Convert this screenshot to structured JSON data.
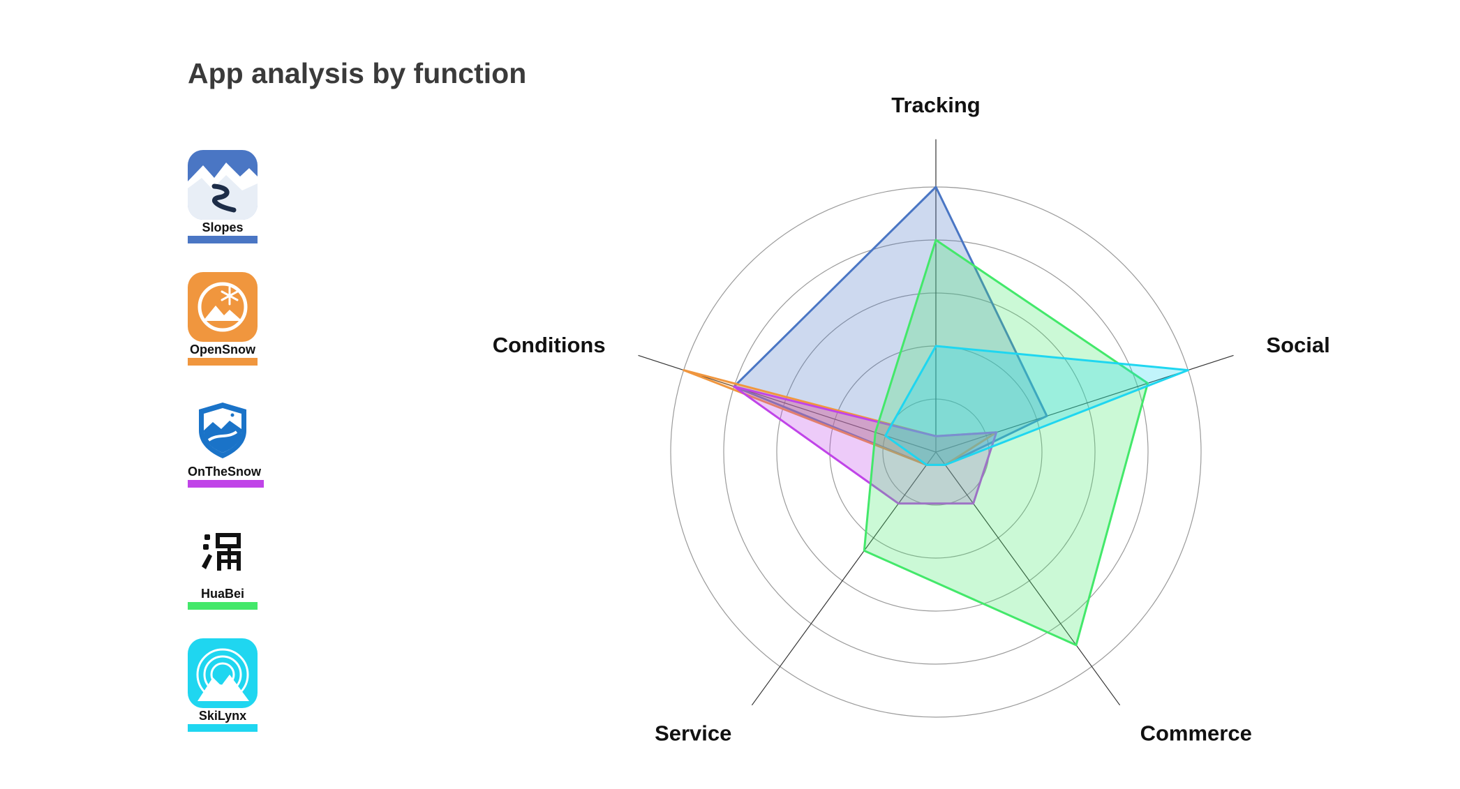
{
  "title": "App analysis by function",
  "legend": [
    {
      "name": "Slopes",
      "color": "#4a76c4",
      "icon": "slopes-app-icon"
    },
    {
      "name": "OpenSnow",
      "color": "#f0963e",
      "icon": "opensnow-app-icon"
    },
    {
      "name": "OnTheSnow",
      "color": "#c044e8",
      "icon": "onthesnow-app-icon"
    },
    {
      "name": "HuaBei",
      "color": "#43e86a",
      "icon": "huabei-app-icon"
    },
    {
      "name": "SkiLynx",
      "color": "#1fd6f0",
      "icon": "skilynx-app-icon"
    }
  ],
  "chart_data": {
    "type": "radar",
    "title": "App analysis by function",
    "axes": [
      "Tracking",
      "Social",
      "Commerce",
      "Service",
      "Conditions"
    ],
    "range": [
      0,
      5
    ],
    "grid": true,
    "rings": 5,
    "legend_position": "left",
    "series": [
      {
        "name": "Slopes",
        "color": "#4a76c4",
        "values": [
          5,
          2.2,
          0.3,
          0.3,
          4
        ]
      },
      {
        "name": "OpenSnow",
        "color": "#f0963e",
        "values": [
          0.3,
          1.2,
          0.3,
          0.3,
          5
        ]
      },
      {
        "name": "OnTheSnow",
        "color": "#c044e8",
        "values": [
          0.3,
          1.2,
          1.2,
          1.2,
          4
        ]
      },
      {
        "name": "HuaBei",
        "color": "#43e86a",
        "values": [
          4,
          4.2,
          4.5,
          2.3,
          1.2
        ]
      },
      {
        "name": "SkiLynx",
        "color": "#1fd6f0",
        "values": [
          2,
          5,
          0.3,
          0.3,
          1
        ]
      }
    ]
  }
}
